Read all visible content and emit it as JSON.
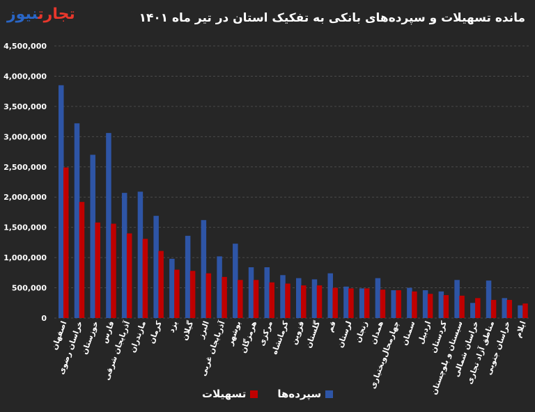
{
  "header": {
    "title": "مانده تسهیلات و سپرده‌های بانکی به تفکیک استان در تیر ماه ۱۴۰۱",
    "logo_part1": "تجارت",
    "logo_part2": "نیوز"
  },
  "colors": {
    "background": "#262626",
    "deposits": "#2e55a6",
    "loans": "#c00000",
    "logo_red": "#e8372c",
    "logo_blue": "#2a66c6"
  },
  "chart_data": {
    "type": "bar",
    "title": "مانده تسهیلات و سپرده‌های بانکی به تفکیک استان در تیر ماه ۱۴۰۱",
    "xlabel": "",
    "ylabel": "",
    "ylim": [
      0,
      4500000
    ],
    "yticks": [
      0,
      500000,
      1000000,
      1500000,
      2000000,
      2500000,
      3000000,
      3500000,
      4000000,
      4500000
    ],
    "ytick_labels": [
      "0",
      "500,000",
      "1,000,000",
      "1,500,000",
      "2,000,000",
      "2,500,000",
      "3,000,000",
      "3,500,000",
      "4,000,000",
      "4,500,000"
    ],
    "grid": true,
    "legend_position": "bottom",
    "categories": [
      "اصفهان",
      "خراسان رضوی",
      "خوزستان",
      "فارس",
      "آذربایجان شرقی",
      "مازندران",
      "کرمان",
      "یزد",
      "گیلان",
      "البرز",
      "آذربایجان غربی",
      "بوشهر",
      "هرمزگان",
      "مرکزی",
      "کرمانشاه",
      "قزوین",
      "گلستان",
      "قم",
      "لرستان",
      "زنجان",
      "همدان",
      "چهارمحال‌وبختیاری",
      "سمنان",
      "اردبیل",
      "کردستان",
      "سیستان و بلوچستان",
      "خراسان شمالی",
      "مناطق آزاد تجاری",
      "خراسان جنوبی",
      "ایلام"
    ],
    "series": [
      {
        "name": "سپرده‌ها",
        "color": "#2e55a6",
        "values": [
          3850000,
          3220000,
          2700000,
          3060000,
          2070000,
          2090000,
          1690000,
          980000,
          1360000,
          1620000,
          1020000,
          1230000,
          840000,
          840000,
          710000,
          660000,
          640000,
          740000,
          520000,
          490000,
          660000,
          460000,
          500000,
          460000,
          440000,
          630000,
          250000,
          620000,
          330000,
          210000
        ]
      },
      {
        "name": "تسهیلات",
        "color": "#c00000",
        "values": [
          2490000,
          1920000,
          1580000,
          1560000,
          1400000,
          1310000,
          1110000,
          800000,
          780000,
          740000,
          680000,
          630000,
          630000,
          590000,
          570000,
          540000,
          540000,
          500000,
          490000,
          490000,
          470000,
          460000,
          440000,
          400000,
          380000,
          370000,
          330000,
          300000,
          300000,
          240000
        ]
      }
    ]
  }
}
